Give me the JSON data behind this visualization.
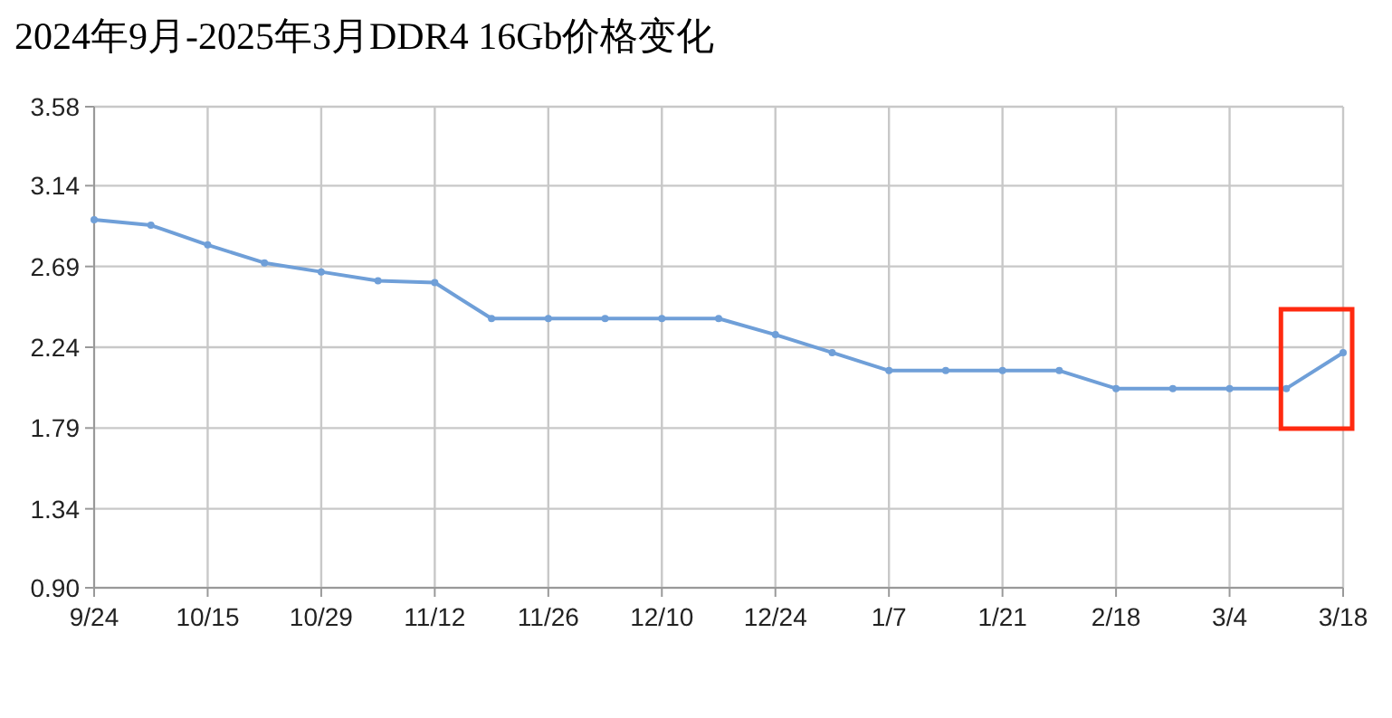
{
  "chart_data": {
    "type": "line",
    "title": "2024年9月-2025年3月DDR4 16Gb价格变化",
    "categories": [
      "9/24",
      null,
      "10/15",
      null,
      "10/29",
      null,
      "11/12",
      null,
      "11/26",
      null,
      "12/10",
      null,
      "12/24",
      null,
      "1/7",
      null,
      "1/21",
      null,
      "2/18",
      null,
      "3/4",
      null,
      "3/18"
    ],
    "values": [
      2.95,
      2.92,
      2.81,
      2.71,
      2.66,
      2.61,
      2.6,
      2.4,
      2.4,
      2.4,
      2.4,
      2.4,
      2.31,
      2.21,
      2.11,
      2.11,
      2.11,
      2.11,
      2.01,
      2.01,
      2.01,
      2.01,
      2.21
    ],
    "color": "#6f9fd8",
    "ylim": [
      0.9,
      3.58
    ],
    "yticks": [
      {
        "value": 0.9,
        "label": "0.90"
      },
      1.34,
      1.79,
      2.24,
      2.69,
      3.14,
      3.58
    ],
    "grid": true,
    "marker": "circle",
    "line_style": "solid"
  }
}
